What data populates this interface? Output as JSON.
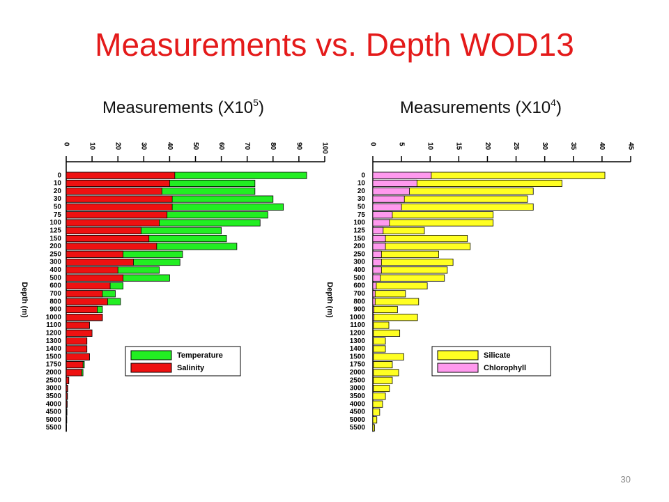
{
  "title": "Measurements vs. Depth WOD13",
  "page_number": "30",
  "chart_data": [
    {
      "type": "bar",
      "orientation": "horizontal",
      "barmode": "overlay",
      "subtitle": {
        "text": "Measurements (X10",
        "exponent": "5",
        "close": ")"
      },
      "ylabel": "Depth (m)",
      "categories": [
        "0",
        "10",
        "20",
        "30",
        "50",
        "75",
        "100",
        "125",
        "150",
        "200",
        "250",
        "300",
        "400",
        "500",
        "600",
        "700",
        "800",
        "900",
        "1000",
        "1100",
        "1200",
        "1300",
        "1400",
        "1500",
        "1750",
        "2000",
        "2500",
        "3000",
        "3500",
        "4000",
        "4500",
        "5000",
        "5500"
      ],
      "series": [
        {
          "name": "Temperature",
          "color": "#22ee22",
          "values": [
            93,
            73,
            73,
            80,
            84,
            78,
            75,
            60,
            62,
            66,
            45,
            44,
            36,
            40,
            22,
            19,
            21,
            14,
            14,
            9,
            10,
            8,
            8,
            9,
            7,
            6.5,
            1,
            0.6,
            0.5,
            0.4,
            0.3,
            0.2,
            0.1
          ]
        },
        {
          "name": "Salinity",
          "color": "#ee1111",
          "values": [
            42,
            40,
            37,
            41,
            41,
            39,
            36,
            29,
            32,
            35,
            22,
            26,
            20,
            22,
            17,
            14,
            16,
            12,
            14,
            9,
            10,
            8,
            8,
            9,
            6.5,
            6,
            1,
            0.5,
            0.4,
            0.3,
            0.2,
            0.2,
            0.1
          ]
        }
      ],
      "xlim": [
        0,
        100
      ],
      "xticks": [
        0,
        10,
        20,
        30,
        40,
        50,
        60,
        70,
        80,
        90,
        100
      ]
    },
    {
      "type": "bar",
      "orientation": "horizontal",
      "barmode": "overlay",
      "subtitle": {
        "text": "Measurements (X10",
        "exponent": "4",
        "close": ")"
      },
      "ylabel": "Depth (m)",
      "categories": [
        "0",
        "10",
        "20",
        "30",
        "50",
        "75",
        "100",
        "125",
        "150",
        "200",
        "250",
        "300",
        "400",
        "500",
        "600",
        "700",
        "800",
        "900",
        "1000",
        "1100",
        "1200",
        "1300",
        "1400",
        "1500",
        "1750",
        "2000",
        "2500",
        "3000",
        "3500",
        "4000",
        "4500",
        "5000",
        "5500"
      ],
      "series": [
        {
          "name": "Silicate",
          "color": "#ffff22",
          "values": [
            40.5,
            33,
            28,
            27,
            28,
            21,
            21,
            9,
            16.5,
            17,
            11.5,
            14,
            13,
            12.5,
            9.5,
            5.7,
            8,
            4.3,
            7.8,
            2.8,
            4.7,
            2.2,
            2.2,
            5.4,
            3.4,
            4.5,
            3.4,
            2.9,
            2.2,
            1.7,
            1.2,
            0.7,
            0.3
          ]
        },
        {
          "name": "Chlorophyll",
          "color": "#ff99ee",
          "values": [
            10.2,
            7.7,
            6.4,
            5.5,
            5,
            3.4,
            2.9,
            1.8,
            2.2,
            2.2,
            1.5,
            1.5,
            1.5,
            1.3,
            0.6,
            0.4,
            0.4,
            0.2,
            0.2,
            0.1,
            0.1,
            0.1,
            0.1,
            0.1,
            0.1,
            0.1,
            0.1,
            0.1,
            0,
            0,
            0,
            0,
            0
          ]
        }
      ],
      "xlim": [
        0,
        45
      ],
      "xticks": [
        0,
        5,
        10,
        15,
        20,
        25,
        30,
        35,
        40,
        45
      ]
    }
  ]
}
